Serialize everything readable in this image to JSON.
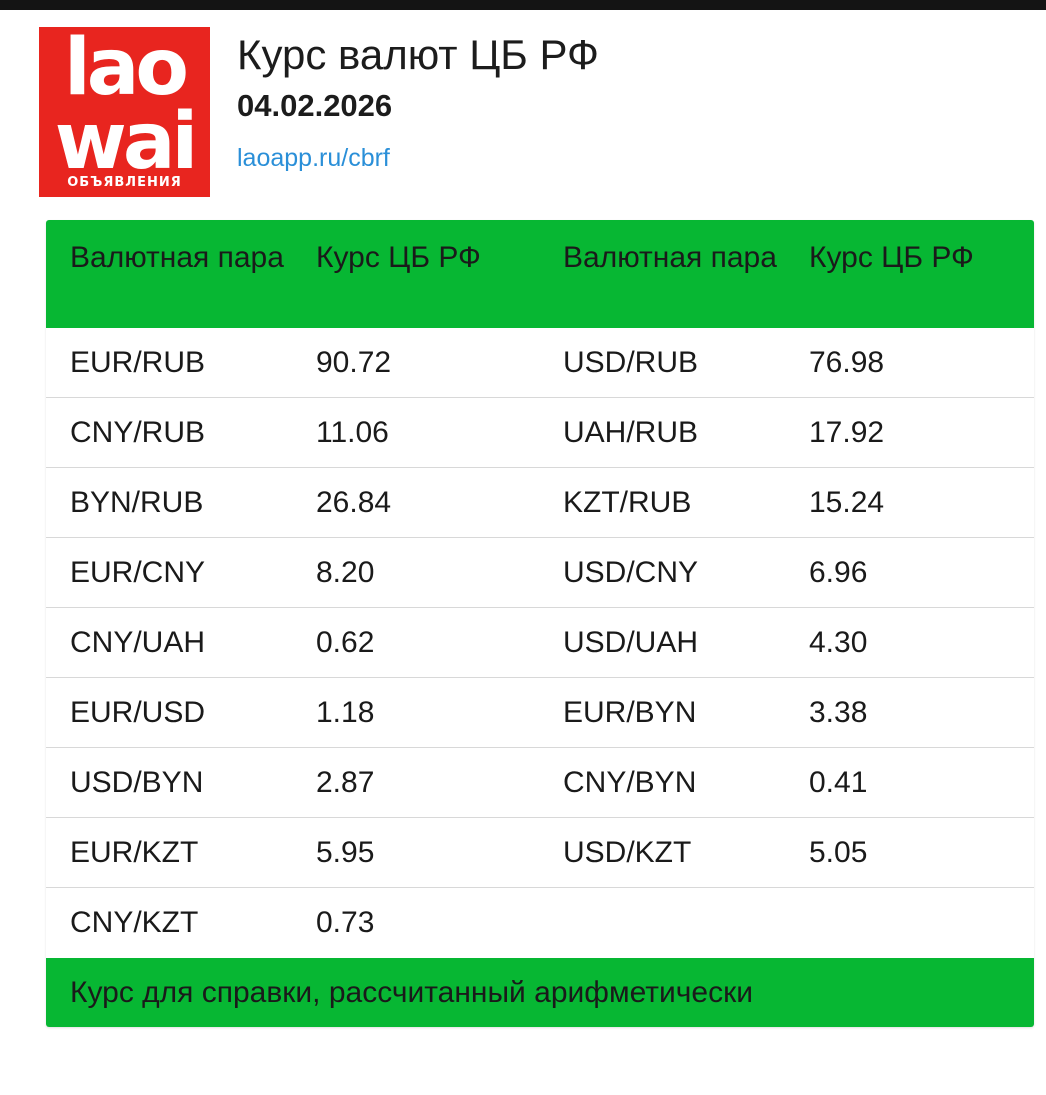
{
  "header": {
    "logo": {
      "line1": "lao",
      "line2": "wai",
      "sub": "ОБЪЯВЛЕНИЯ",
      "color": "#e8251f"
    },
    "title": "Курс валют ЦБ РФ",
    "date": "04.02.2026",
    "link": "laoapp.ru/cbrf"
  },
  "table": {
    "accent_color": "#07b733",
    "headers": [
      "Валютная пара",
      "Курс ЦБ РФ",
      "Валютная пара",
      "Курс ЦБ РФ"
    ],
    "rows": [
      [
        "EUR/RUB",
        "90.72",
        "USD/RUB",
        "76.98"
      ],
      [
        "CNY/RUB",
        "11.06",
        "UAH/RUB",
        "17.92"
      ],
      [
        "BYN/RUB",
        "26.84",
        "KZT/RUB",
        "15.24"
      ],
      [
        "EUR/CNY",
        "8.20",
        "USD/CNY",
        "6.96"
      ],
      [
        "CNY/UAH",
        "0.62",
        "USD/UAH",
        "4.30"
      ],
      [
        "EUR/USD",
        "1.18",
        "EUR/BYN",
        "3.38"
      ],
      [
        "USD/BYN",
        "2.87",
        "CNY/BYN",
        "0.41"
      ],
      [
        "EUR/KZT",
        "5.95",
        "USD/KZT",
        "5.05"
      ],
      [
        "CNY/KZT",
        "0.73",
        "",
        ""
      ]
    ],
    "footer": "Курс для справки, рассчитанный арифметически"
  }
}
